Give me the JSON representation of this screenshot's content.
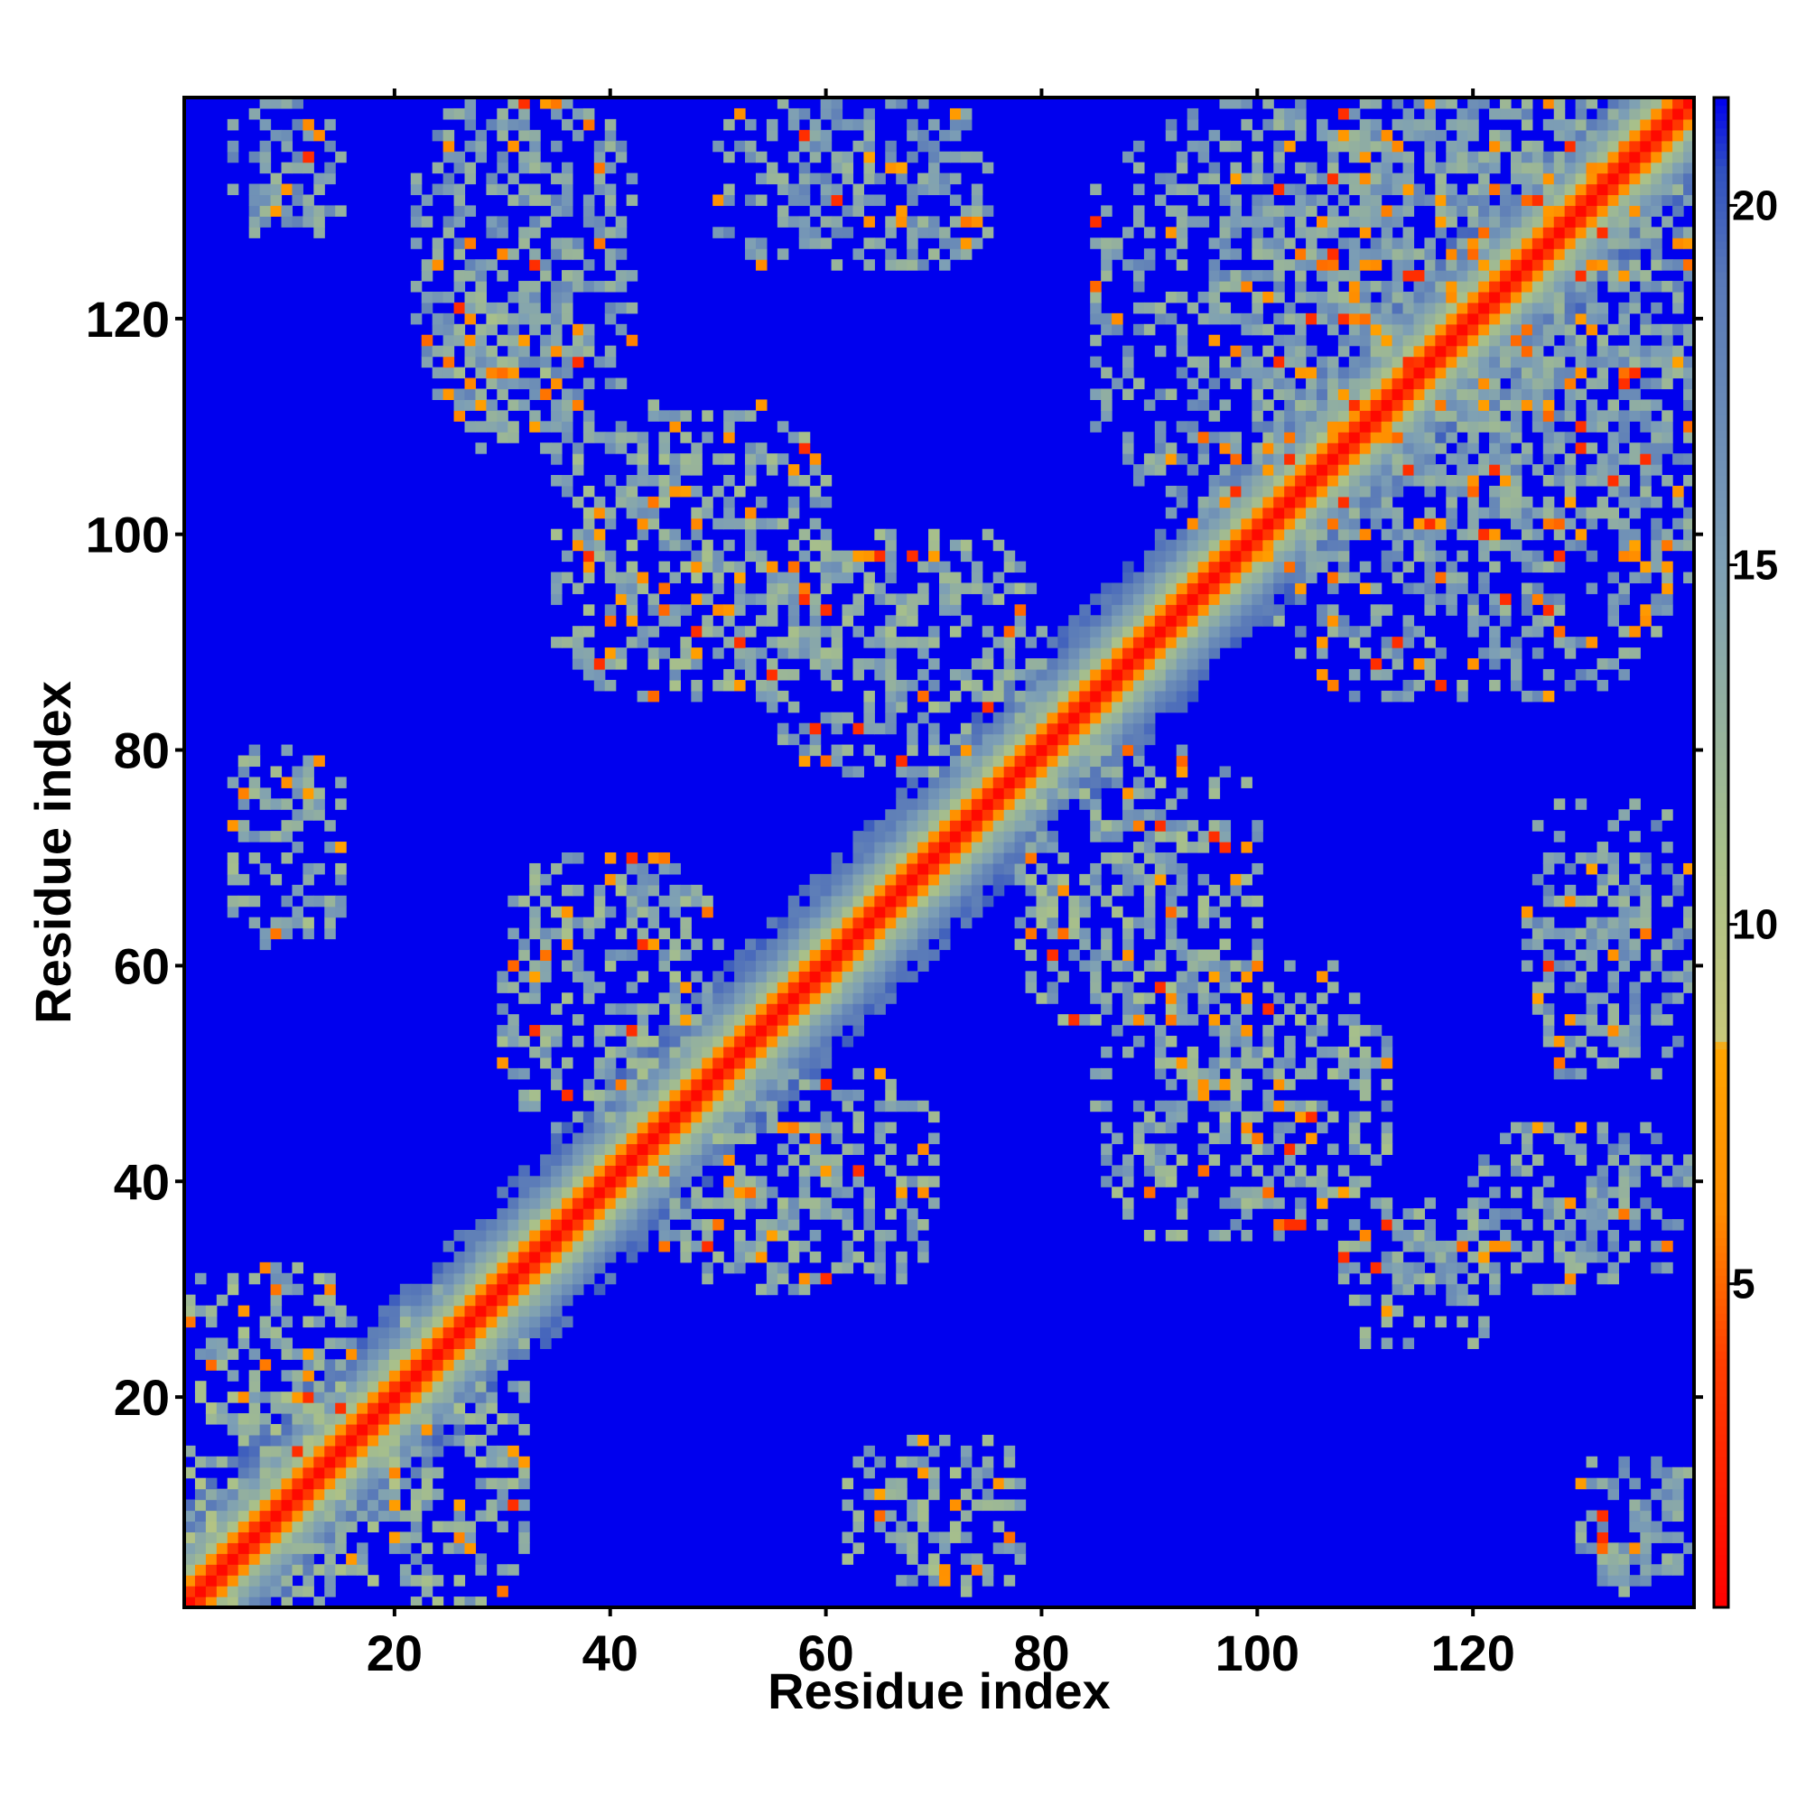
{
  "chart_data": {
    "type": "heatmap",
    "title": "",
    "xlabel": "Residue index",
    "ylabel": "Residue index",
    "n_residues": 140,
    "xlim": [
      1,
      140
    ],
    "ylim": [
      1,
      140
    ],
    "x_ticks": [
      20,
      40,
      60,
      80,
      100,
      120
    ],
    "y_ticks": [
      20,
      40,
      60,
      80,
      100,
      120
    ],
    "colorbar": {
      "ticks": [
        5,
        10,
        15,
        20
      ],
      "range": [
        0.5,
        21.5
      ],
      "colors": [
        {
          "value": 0.5,
          "color": "#ff0000"
        },
        {
          "value": 4.0,
          "color": "#ff4000"
        },
        {
          "value": 6.0,
          "color": "#ff8c00"
        },
        {
          "value": 8.3,
          "color": "#ffa500"
        },
        {
          "value": 8.4,
          "color": "#c8c87a"
        },
        {
          "value": 11.0,
          "color": "#a8c08a"
        },
        {
          "value": 15.0,
          "color": "#7d9fb5"
        },
        {
          "value": 19.0,
          "color": "#5878b8"
        },
        {
          "value": 20.5,
          "color": "#3050c0"
        },
        {
          "value": 21.5,
          "color": "#0000ee"
        }
      ]
    },
    "background_value": 21.5,
    "diagonal": {
      "core_value": 1.0,
      "orange_halfwidth": 2,
      "green_halfwidth": 7
    },
    "contact_regions": [
      {
        "x": [
          1,
          20
        ],
        "y": [
          1,
          20
        ],
        "level": 11
      },
      {
        "x": [
          20,
          32
        ],
        "y": [
          1,
          30
        ],
        "level": 12
      },
      {
        "x": [
          1,
          16
        ],
        "y": [
          18,
          32
        ],
        "level": 12
      },
      {
        "x": [
          5,
          15
        ],
        "y": [
          62,
          80
        ],
        "level": 12
      },
      {
        "x": [
          62,
          78
        ],
        "y": [
          2,
          16
        ],
        "level": 12
      },
      {
        "x": [
          30,
          50
        ],
        "y": [
          45,
          70
        ],
        "level": 12
      },
      {
        "x": [
          45,
          70
        ],
        "y": [
          30,
          50
        ],
        "level": 12
      },
      {
        "x": [
          35,
          60
        ],
        "y": [
          85,
          112
        ],
        "level": 12
      },
      {
        "x": [
          85,
          112
        ],
        "y": [
          35,
          60
        ],
        "level": 12
      },
      {
        "x": [
          55,
          80
        ],
        "y": [
          78,
          100
        ],
        "level": 12
      },
      {
        "x": [
          78,
          100
        ],
        "y": [
          55,
          80
        ],
        "level": 12
      },
      {
        "x": [
          50,
          75
        ],
        "y": [
          125,
          140
        ],
        "level": 13
      },
      {
        "x": [
          125,
          140
        ],
        "y": [
          50,
          75
        ],
        "level": 13
      },
      {
        "x": [
          85,
          140
        ],
        "y": [
          100,
          140
        ],
        "level": 13
      },
      {
        "x": [
          100,
          140
        ],
        "y": [
          85,
          140
        ],
        "level": 13
      },
      {
        "x": [
          120,
          140
        ],
        "y": [
          30,
          45
        ],
        "level": 13
      },
      {
        "x": [
          130,
          140
        ],
        "y": [
          2,
          15
        ],
        "level": 13
      },
      {
        "x": [
          5,
          15
        ],
        "y": [
          128,
          140
        ],
        "level": 13
      },
      {
        "x": [
          22,
          42
        ],
        "y": [
          110,
          140
        ],
        "level": 13
      },
      {
        "x": [
          25,
          38
        ],
        "y": [
          108,
          122
        ],
        "level": 12
      },
      {
        "x": [
          108,
          122
        ],
        "y": [
          25,
          38
        ],
        "level": 12
      }
    ]
  }
}
